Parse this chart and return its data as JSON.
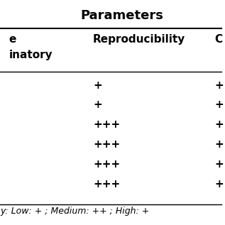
{
  "title": "Parameters",
  "col1_header_line1": "e",
  "col1_header_line2": "inatory",
  "col2_header": "Reproducibility",
  "col3_header": "C",
  "rows": [
    {
      "col2": "+",
      "col3": "+"
    },
    {
      "col2": "+",
      "col3": "+"
    },
    {
      "col2": "+++",
      "col3": "+"
    },
    {
      "col2": "+++",
      "col3": "+"
    },
    {
      "col2": "+++",
      "col3": "+"
    },
    {
      "col2": "+++",
      "col3": "+"
    }
  ],
  "footer": "y: Low: + ; Medium: ++ ; High: +",
  "bg_color": "#ffffff",
  "text_color": "#000000",
  "title_fontsize": 13,
  "header_fontsize": 11,
  "data_fontsize": 11,
  "footer_fontsize": 9
}
